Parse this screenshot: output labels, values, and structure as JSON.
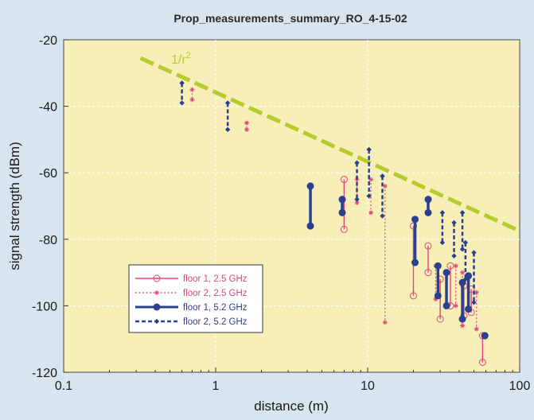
{
  "chart_data": {
    "type": "scatter",
    "title": "Prop_measurements_summary_RO_4-15-02",
    "xlabel": "distance (m)",
    "ylabel": "signal strength (dBm)",
    "x_scale": "log",
    "xlim": [
      0.1,
      100
    ],
    "ylim": [
      -120,
      -20
    ],
    "x_ticks": [
      0.1,
      1,
      10,
      100
    ],
    "x_tick_labels": [
      "0.1",
      "1",
      "10",
      "100"
    ],
    "y_ticks": [
      -120,
      -100,
      -80,
      -60,
      -40,
      -20
    ],
    "y_tick_labels": [
      "-120",
      "-100",
      "-80",
      "-60",
      "-40",
      "-20"
    ],
    "grid": true,
    "legend_position": "bottom-left",
    "colors": {
      "plot_bg": "#f7efb7",
      "outer_bg": "#d8e4ee",
      "grid": "#ffffff",
      "pink": "#e0457a",
      "blue": "#2a3f8e",
      "reference": "#b5cc2c"
    },
    "reference_line": {
      "label": "1/r",
      "label_superscript": "2",
      "x": [
        0.32,
        100
      ],
      "y": [
        -25.5,
        -77.5
      ]
    },
    "series": [
      {
        "name": "floor 1, 2.5 GHz",
        "style": "solid-open-circle",
        "color": "#e0457a",
        "ranges": [
          {
            "x": 7.0,
            "y": [
              -62,
              -77
            ]
          },
          {
            "x": 20.0,
            "y": [
              -76,
              -97
            ]
          },
          {
            "x": 25.0,
            "y": [
              -82,
              -90
            ]
          },
          {
            "x": 30.0,
            "y": [
              -92,
              -104
            ]
          },
          {
            "x": 35.0,
            "y": [
              -88,
              -100
            ]
          },
          {
            "x": 43.0,
            "y": [
              -94,
              -103
            ]
          },
          {
            "x": 48.0,
            "y": [
              -95,
              -102
            ]
          },
          {
            "x": 57.0,
            "y": [
              -109,
              -117
            ]
          }
        ]
      },
      {
        "name": "floor 2, 2.5 GHz",
        "style": "dotted-star",
        "color": "#e0457a",
        "ranges": [
          {
            "x": 0.7,
            "y": [
              -35,
              -38
            ]
          },
          {
            "x": 1.6,
            "y": [
              -45,
              -47
            ]
          },
          {
            "x": 8.5,
            "y": [
              -62,
              -69
            ]
          },
          {
            "x": 10.5,
            "y": [
              -62,
              -72
            ]
          },
          {
            "x": 13.0,
            "y": [
              -64,
              -105
            ]
          },
          {
            "x": 28.0,
            "y": [
              -88,
              -98
            ]
          },
          {
            "x": 38.0,
            "y": [
              -88,
              -100
            ]
          },
          {
            "x": 42.0,
            "y": [
              -90,
              -106
            ]
          },
          {
            "x": 52.0,
            "y": [
              -96,
              -107
            ]
          }
        ]
      },
      {
        "name": "floor 1, 5.2 GHz",
        "style": "solid-dot",
        "color": "#2a3f8e",
        "ranges": [
          {
            "x": 4.2,
            "y": [
              -64,
              -76
            ]
          },
          {
            "x": 6.8,
            "y": [
              -68,
              -72
            ]
          },
          {
            "x": 20.5,
            "y": [
              -74,
              -87
            ]
          },
          {
            "x": 25.0,
            "y": [
              -68,
              -72
            ]
          },
          {
            "x": 29.0,
            "y": [
              -88,
              -97
            ]
          },
          {
            "x": 33.0,
            "y": [
              -90,
              -100
            ]
          },
          {
            "x": 42.0,
            "y": [
              -93,
              -104
            ]
          },
          {
            "x": 46.0,
            "y": [
              -91,
              -101
            ]
          },
          {
            "x": 59.0,
            "y": [
              -109,
              -109
            ]
          }
        ]
      },
      {
        "name": "floor 2,  5.2 GHz",
        "style": "dashed-diamond",
        "color": "#2a3f8e",
        "ranges": [
          {
            "x": 0.6,
            "y": [
              -33,
              -39
            ]
          },
          {
            "x": 1.2,
            "y": [
              -39,
              -47
            ]
          },
          {
            "x": 8.5,
            "y": [
              -57,
              -68
            ]
          },
          {
            "x": 10.2,
            "y": [
              -53,
              -67
            ]
          },
          {
            "x": 12.5,
            "y": [
              -61,
              -73
            ]
          },
          {
            "x": 31.0,
            "y": [
              -72,
              -81
            ]
          },
          {
            "x": 37.0,
            "y": [
              -75,
              -85
            ]
          },
          {
            "x": 42.0,
            "y": [
              -72,
              -83
            ]
          },
          {
            "x": 44.0,
            "y": [
              -81,
              -92
            ]
          },
          {
            "x": 50.0,
            "y": [
              -84,
              -99
            ]
          }
        ]
      }
    ]
  }
}
